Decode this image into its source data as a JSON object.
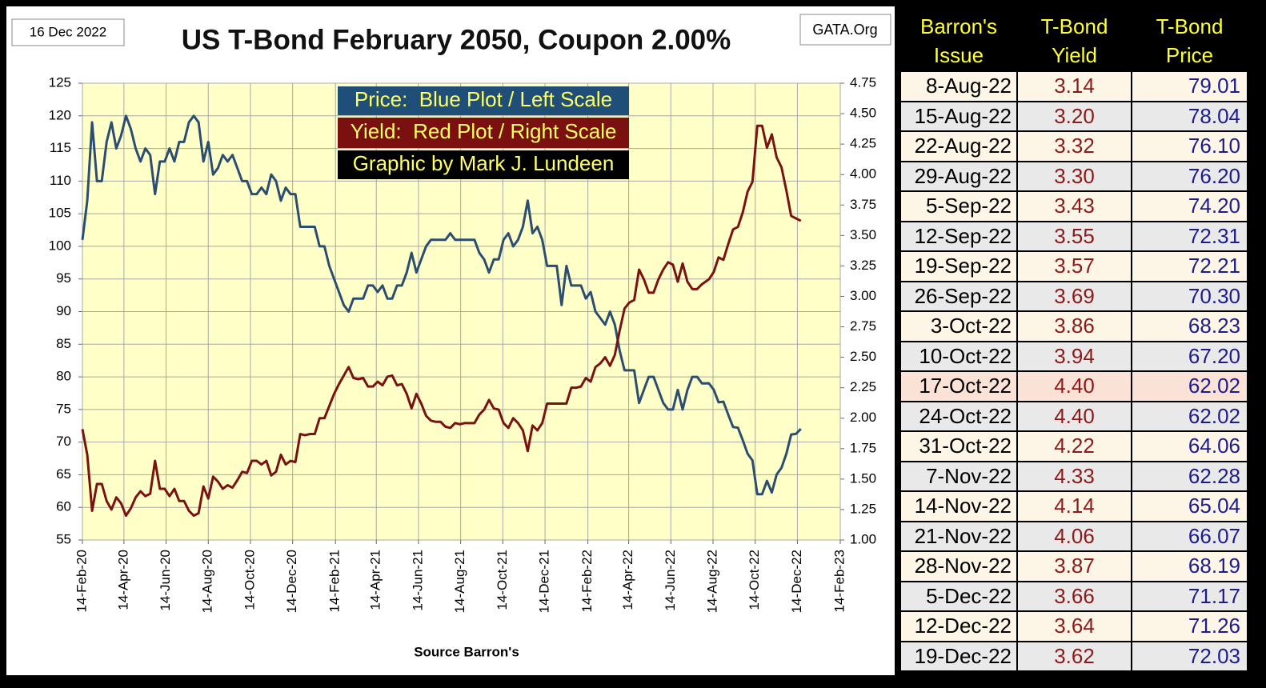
{
  "chart_data": {
    "type": "line",
    "title": "US T-Bond February 2050, Coupon 2.00%",
    "date_label": "16 Dec 2022",
    "source_label": "GATA.Org",
    "xlabel": "Source Barron's",
    "credit": "Graphic by Mark J. Lundeen",
    "grid": true,
    "x": [
      "2020-02-14",
      "2020-02-21",
      "2020-02-28",
      "2020-03-06",
      "2020-03-13",
      "2020-03-20",
      "2020-03-27",
      "2020-04-03",
      "2020-04-10",
      "2020-04-17",
      "2020-04-24",
      "2020-05-01",
      "2020-05-08",
      "2020-05-15",
      "2020-05-22",
      "2020-05-29",
      "2020-06-05",
      "2020-06-12",
      "2020-06-19",
      "2020-06-26",
      "2020-07-03",
      "2020-07-10",
      "2020-07-17",
      "2020-07-24",
      "2020-07-31",
      "2020-08-07",
      "2020-08-14",
      "2020-08-21",
      "2020-08-28",
      "2020-09-04",
      "2020-09-11",
      "2020-09-18",
      "2020-09-25",
      "2020-10-02",
      "2020-10-09",
      "2020-10-16",
      "2020-10-23",
      "2020-10-30",
      "2020-11-06",
      "2020-11-13",
      "2020-11-20",
      "2020-11-27",
      "2020-12-04",
      "2020-12-11",
      "2020-12-18",
      "2020-12-25",
      "2021-01-01",
      "2021-01-08",
      "2021-01-15",
      "2021-01-22",
      "2021-01-29",
      "2021-02-05",
      "2021-02-12",
      "2021-02-19",
      "2021-02-26",
      "2021-03-05",
      "2021-03-12",
      "2021-03-19",
      "2021-03-26",
      "2021-04-02",
      "2021-04-09",
      "2021-04-16",
      "2021-04-23",
      "2021-04-30",
      "2021-05-07",
      "2021-05-14",
      "2021-05-21",
      "2021-05-28",
      "2021-06-04",
      "2021-06-11",
      "2021-06-18",
      "2021-06-25",
      "2021-07-02",
      "2021-07-09",
      "2021-07-16",
      "2021-07-23",
      "2021-07-30",
      "2021-08-06",
      "2021-08-13",
      "2021-08-20",
      "2021-08-27",
      "2021-09-03",
      "2021-09-10",
      "2021-09-17",
      "2021-09-24",
      "2021-10-01",
      "2021-10-08",
      "2021-10-15",
      "2021-10-22",
      "2021-10-29",
      "2021-11-05",
      "2021-11-12",
      "2021-11-19",
      "2021-11-26",
      "2021-12-03",
      "2021-12-10",
      "2021-12-17",
      "2021-12-24",
      "2021-12-31",
      "2022-01-07",
      "2022-01-14",
      "2022-01-21",
      "2022-01-28",
      "2022-02-04",
      "2022-02-11",
      "2022-02-18",
      "2022-02-25",
      "2022-03-04",
      "2022-03-11",
      "2022-03-18",
      "2022-03-25",
      "2022-04-01",
      "2022-04-08",
      "2022-04-15",
      "2022-04-22",
      "2022-04-29",
      "2022-05-06",
      "2022-05-13",
      "2022-05-20",
      "2022-05-27",
      "2022-06-03",
      "2022-06-10",
      "2022-06-17",
      "2022-06-24",
      "2022-07-01",
      "2022-07-08",
      "2022-07-15",
      "2022-07-22",
      "2022-07-29",
      "2022-08-08",
      "2022-08-15",
      "2022-08-22",
      "2022-08-29",
      "2022-09-05",
      "2022-09-12",
      "2022-09-19",
      "2022-09-26",
      "2022-10-03",
      "2022-10-10",
      "2022-10-17",
      "2022-10-24",
      "2022-10-31",
      "2022-11-07",
      "2022-11-14",
      "2022-11-21",
      "2022-11-28",
      "2022-12-05",
      "2022-12-12",
      "2022-12-19"
    ],
    "xlim": [
      "2020-02-14",
      "2023-02-14"
    ],
    "xticks": [
      {
        "value": "2020-02-14",
        "label": "14-Feb-20"
      },
      {
        "value": "2020-04-14",
        "label": "14-Apr-20"
      },
      {
        "value": "2020-06-14",
        "label": "14-Jun-20"
      },
      {
        "value": "2020-08-14",
        "label": "14-Aug-20"
      },
      {
        "value": "2020-10-14",
        "label": "14-Oct-20"
      },
      {
        "value": "2020-12-14",
        "label": "14-Dec-20"
      },
      {
        "value": "2021-02-14",
        "label": "14-Feb-21"
      },
      {
        "value": "2021-04-14",
        "label": "14-Apr-21"
      },
      {
        "value": "2021-06-14",
        "label": "14-Jun-21"
      },
      {
        "value": "2021-08-14",
        "label": "14-Aug-21"
      },
      {
        "value": "2021-10-14",
        "label": "14-Oct-21"
      },
      {
        "value": "2021-12-14",
        "label": "14-Dec-21"
      },
      {
        "value": "2022-02-14",
        "label": "14-Feb-22"
      },
      {
        "value": "2022-04-14",
        "label": "14-Apr-22"
      },
      {
        "value": "2022-06-14",
        "label": "14-Jun-22"
      },
      {
        "value": "2022-08-14",
        "label": "14-Aug-22"
      },
      {
        "value": "2022-10-14",
        "label": "14-Oct-22"
      },
      {
        "value": "2022-12-14",
        "label": "14-Dec-22"
      },
      {
        "value": "2023-02-14",
        "label": "14-Feb-23"
      }
    ],
    "ylim": [
      55,
      125
    ],
    "yticks": [
      55,
      60,
      65,
      70,
      75,
      80,
      85,
      90,
      95,
      100,
      105,
      110,
      115,
      120,
      125
    ],
    "y2lim": [
      1,
      4.75
    ],
    "y2ticks": [
      {
        "value": 1,
        "label": "1.00"
      },
      {
        "value": 1.25,
        "label": "1.25"
      },
      {
        "value": 1.5,
        "label": "1.50"
      },
      {
        "value": 1.75,
        "label": "1.75"
      },
      {
        "value": 2,
        "label": "2.00"
      },
      {
        "value": 2.25,
        "label": "2.25"
      },
      {
        "value": 2.5,
        "label": "2.50"
      },
      {
        "value": 2.75,
        "label": "2.75"
      },
      {
        "value": 3,
        "label": "3.00"
      },
      {
        "value": 3.25,
        "label": "3.25"
      },
      {
        "value": 3.5,
        "label": "3.50"
      },
      {
        "value": 3.75,
        "label": "3.75"
      },
      {
        "value": 4,
        "label": "4.00"
      },
      {
        "value": 4.25,
        "label": "4.25"
      },
      {
        "value": 4.5,
        "label": "4.50"
      },
      {
        "value": 4.75,
        "label": "4.75"
      }
    ],
    "series": [
      {
        "name": "Price:  Blue Plot / Left Scale",
        "color": "#2b4d6f",
        "values": [
          101,
          107,
          119,
          110,
          110,
          116,
          119,
          115,
          117,
          120,
          118,
          115,
          113,
          115,
          114,
          108,
          113,
          113,
          115,
          113,
          116,
          116,
          119,
          120,
          119,
          113,
          116,
          111,
          112,
          114,
          113,
          114,
          112,
          110,
          110,
          108,
          108,
          109,
          108,
          111,
          110,
          107,
          109,
          108,
          108,
          103,
          103,
          103,
          103,
          100,
          100,
          97,
          95,
          93,
          91,
          90,
          92,
          92,
          92,
          94,
          94,
          93,
          94,
          92,
          92,
          94,
          94,
          96,
          99,
          96,
          98,
          100,
          101,
          101,
          101,
          101,
          102,
          101,
          101,
          101,
          101,
          101,
          99,
          98,
          96,
          98,
          98,
          101,
          102,
          100,
          101,
          103,
          107,
          102,
          103,
          101,
          97,
          97,
          97,
          91,
          97,
          94,
          94,
          94,
          92,
          93,
          90,
          89,
          88,
          90,
          88,
          84,
          81,
          81,
          81,
          76,
          78,
          80,
          80,
          78,
          76,
          75,
          75,
          78,
          75,
          78,
          80,
          80,
          79,
          79.01,
          78.04,
          76.1,
          76.2,
          74.2,
          72.31,
          72.21,
          70.3,
          68.23,
          67.2,
          62.02,
          62.02,
          64.06,
          62.28,
          65.04,
          66.07,
          68.19,
          71.17,
          71.26,
          72.03
        ]
      },
      {
        "name": "Yield:  Red Plot / Right Scale",
        "color": "#7a1212",
        "axis": "y2",
        "values": [
          1.91,
          1.7,
          1.24,
          1.46,
          1.46,
          1.32,
          1.25,
          1.35,
          1.3,
          1.2,
          1.26,
          1.35,
          1.4,
          1.36,
          1.38,
          1.65,
          1.42,
          1.42,
          1.36,
          1.42,
          1.32,
          1.32,
          1.24,
          1.2,
          1.22,
          1.44,
          1.34,
          1.52,
          1.48,
          1.42,
          1.45,
          1.43,
          1.49,
          1.56,
          1.55,
          1.65,
          1.65,
          1.62,
          1.65,
          1.53,
          1.56,
          1.7,
          1.62,
          1.65,
          1.64,
          1.87,
          1.86,
          1.87,
          1.87,
          2.0,
          2.0,
          2.1,
          2.2,
          2.28,
          2.35,
          2.42,
          2.33,
          2.32,
          2.33,
          2.26,
          2.26,
          2.3,
          2.27,
          2.34,
          2.35,
          2.27,
          2.28,
          2.2,
          2.08,
          2.2,
          2.12,
          2.02,
          1.98,
          1.97,
          1.97,
          1.93,
          1.92,
          1.96,
          1.95,
          1.96,
          1.96,
          1.96,
          2.03,
          2.07,
          2.15,
          2.08,
          2.07,
          1.96,
          1.92,
          2.0,
          1.96,
          1.9,
          1.73,
          1.94,
          1.9,
          1.96,
          2.12,
          2.12,
          2.12,
          2.12,
          2.12,
          2.25,
          2.25,
          2.26,
          2.33,
          2.3,
          2.42,
          2.45,
          2.5,
          2.43,
          2.52,
          2.72,
          2.9,
          2.95,
          2.97,
          3.22,
          3.14,
          3.03,
          3.03,
          3.14,
          3.22,
          3.28,
          3.26,
          3.12,
          3.27,
          3.12,
          3.06,
          3.06,
          3.1,
          3.14,
          3.2,
          3.32,
          3.3,
          3.43,
          3.55,
          3.57,
          3.69,
          3.86,
          3.94,
          4.4,
          4.4,
          4.22,
          4.33,
          4.14,
          4.06,
          3.87,
          3.66,
          3.64,
          3.62
        ]
      }
    ]
  },
  "table": {
    "header": [
      "Barron's Issue",
      "T-Bond Yield",
      "T-Bond Price"
    ],
    "highlight_row": 10,
    "rows": [
      [
        "8-Aug-22",
        "3.14",
        "79.01"
      ],
      [
        "15-Aug-22",
        "3.20",
        "78.04"
      ],
      [
        "22-Aug-22",
        "3.32",
        "76.10"
      ],
      [
        "29-Aug-22",
        "3.30",
        "76.20"
      ],
      [
        "5-Sep-22",
        "3.43",
        "74.20"
      ],
      [
        "12-Sep-22",
        "3.55",
        "72.31"
      ],
      [
        "19-Sep-22",
        "3.57",
        "72.21"
      ],
      [
        "26-Sep-22",
        "3.69",
        "70.30"
      ],
      [
        "3-Oct-22",
        "3.86",
        "68.23"
      ],
      [
        "10-Oct-22",
        "3.94",
        "67.20"
      ],
      [
        "17-Oct-22",
        "4.40",
        "62.02"
      ],
      [
        "24-Oct-22",
        "4.40",
        "62.02"
      ],
      [
        "31-Oct-22",
        "4.22",
        "64.06"
      ],
      [
        "7-Nov-22",
        "4.33",
        "62.28"
      ],
      [
        "14-Nov-22",
        "4.14",
        "65.04"
      ],
      [
        "21-Nov-22",
        "4.06",
        "66.07"
      ],
      [
        "28-Nov-22",
        "3.87",
        "68.19"
      ],
      [
        "5-Dec-22",
        "3.66",
        "71.17"
      ],
      [
        "12-Dec-22",
        "3.64",
        "71.26"
      ],
      [
        "19-Dec-22",
        "3.62",
        "72.03"
      ]
    ]
  }
}
